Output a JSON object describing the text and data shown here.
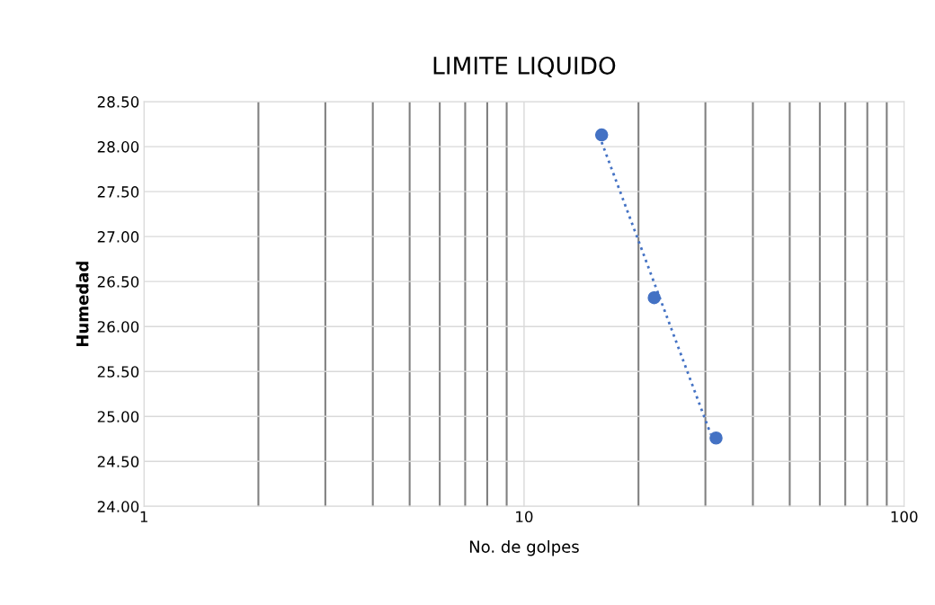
{
  "chart_data": {
    "type": "scatter",
    "title": "LIMITE LIQUIDO",
    "xlabel": "No. de golpes",
    "ylabel": "Humedad",
    "log": "x",
    "xlim": [
      1,
      100
    ],
    "xticks": [
      1,
      10,
      100
    ],
    "ylim": [
      24,
      28.5
    ],
    "yticks": [
      {
        "value": 24,
        "label": "24.00"
      },
      {
        "value": 24.5,
        "label": "24.50"
      },
      {
        "value": 25,
        "label": "25.00"
      },
      {
        "value": 25.5,
        "label": "25.50"
      },
      {
        "value": 26,
        "label": "26.00"
      },
      {
        "value": 26.5,
        "label": "26.50"
      },
      {
        "value": 27,
        "label": "27.00"
      },
      {
        "value": 27.5,
        "label": "27.50"
      },
      {
        "value": 28,
        "label": "28.00"
      },
      {
        "value": 28.5,
        "label": "28.50"
      }
    ],
    "grid": true,
    "legend": false,
    "series": [
      {
        "color": "#4472c4",
        "marker": "circle",
        "x": [
          16,
          22,
          32
        ],
        "values": [
          28.13,
          26.32,
          24.76
        ]
      },
      {
        "type": "line",
        "color": "#4472c4",
        "line_style": "dotted",
        "marker": "none",
        "x": [
          16,
          31
        ],
        "values": [
          28.05,
          24.8
        ]
      }
    ]
  }
}
